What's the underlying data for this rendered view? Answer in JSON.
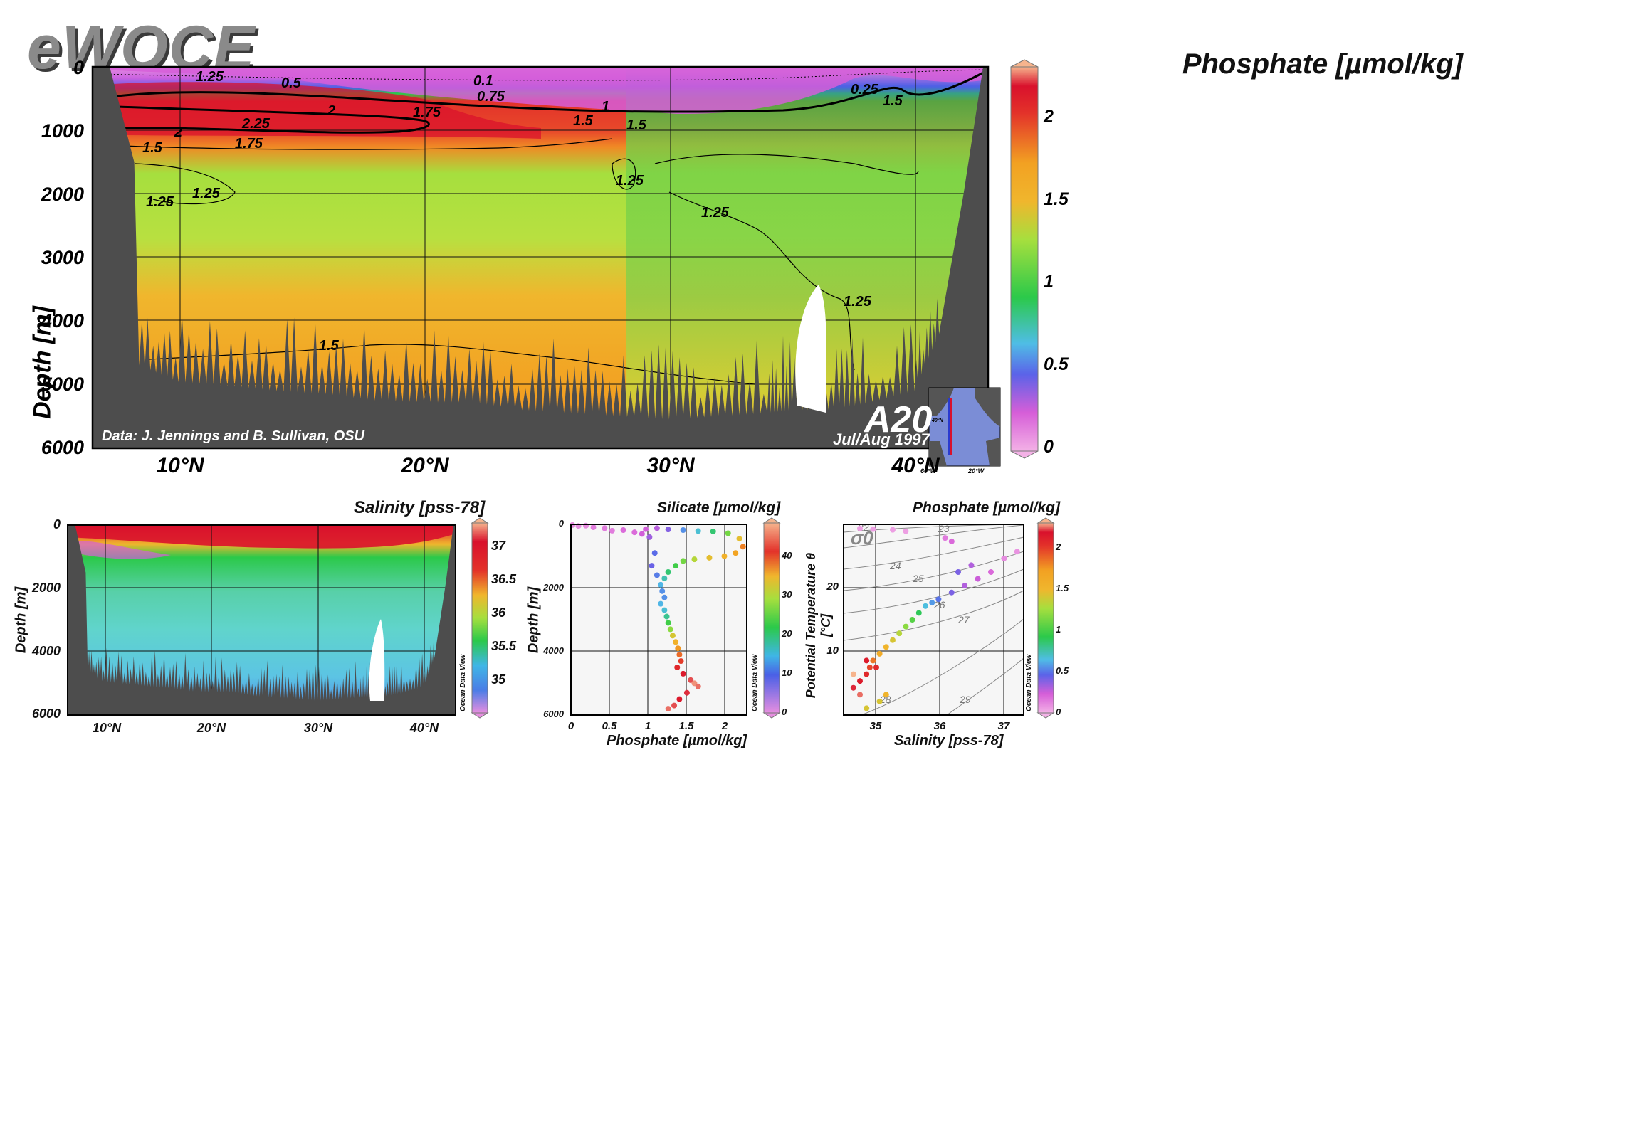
{
  "logo": "eWOCE",
  "main": {
    "title": "Phosphate [µmol/kg]",
    "ylabel": "Depth [m]",
    "credit": "Data: J. Jennings and B. Sullivan, OSU",
    "section": "A20",
    "date": "Jul/Aug 1997"
  },
  "colors": {
    "terrain": "#4d4d4d",
    "scale": [
      "#f3b1e6",
      "#d65ed8",
      "#5b63e8",
      "#4fbde6",
      "#2bc94a",
      "#a6df3e",
      "#f0b62d",
      "#f2a122",
      "#e3322a",
      "#d9112c",
      "#f6b48d"
    ]
  },
  "inset": {
    "lon_left": "60°W",
    "lon_right": "20°W",
    "lat_top": "40°N"
  },
  "chart_data": [
    {
      "id": "main",
      "type": "heatmap",
      "title": "Phosphate [µmol/kg]",
      "ylabel": "Depth [m]",
      "xlabel": "",
      "x_ticks": [
        "10°N",
        "20°N",
        "30°N",
        "40°N"
      ],
      "x_tick_values": [
        10,
        20,
        30,
        40
      ],
      "xlim": [
        6.5,
        43
      ],
      "y_ticks": [
        "0",
        "1000",
        "2000",
        "3000",
        "4000",
        "5000",
        "6000"
      ],
      "y_tick_values": [
        0,
        1000,
        2000,
        3000,
        4000,
        5000,
        6000
      ],
      "ylim": [
        6000,
        0
      ],
      "colorbar": {
        "ticks": [
          "0",
          "0.5",
          "1",
          "1.5",
          "2"
        ],
        "tick_values": [
          0,
          0.5,
          1,
          1.5,
          2
        ],
        "range": [
          0,
          2.3
        ]
      },
      "contour_labels": [
        "1.25",
        "0.5",
        "0.1",
        "0.75",
        "1",
        "2",
        "2.25",
        "1.75",
        "1.5",
        "0.25",
        "1.5",
        "1.25",
        "1.25",
        "1.25",
        "1.5",
        "1.25",
        "1.75",
        "1.5",
        "2",
        "1.5",
        "1.25"
      ],
      "bottom_depth_profile": [
        [
          7.2,
          0
        ],
        [
          8.2,
          1500
        ],
        [
          8.4,
          4700
        ],
        [
          10,
          4960
        ],
        [
          12,
          5020
        ],
        [
          14,
          5100
        ],
        [
          16,
          5150
        ],
        [
          18,
          5250
        ],
        [
          20,
          5280
        ],
        [
          22,
          5280
        ],
        [
          24,
          5400
        ],
        [
          26,
          5450
        ],
        [
          28,
          5500
        ],
        [
          30,
          5550
        ],
        [
          32,
          5500
        ],
        [
          34,
          5450
        ],
        [
          35,
          5400
        ],
        [
          36.5,
          5400
        ],
        [
          38,
          5300
        ],
        [
          40,
          5100
        ],
        [
          41,
          4200
        ],
        [
          42,
          2000
        ],
        [
          42.8,
          0
        ]
      ],
      "grid": true
    },
    {
      "id": "salinity",
      "type": "heatmap",
      "title": "Salinity [pss-78]",
      "ylabel": "Depth [m]",
      "x_ticks": [
        "10°N",
        "20°N",
        "30°N",
        "40°N"
      ],
      "x_tick_values": [
        10,
        20,
        30,
        40
      ],
      "xlim": [
        6.5,
        43
      ],
      "y_ticks": [
        "0",
        "2000",
        "4000",
        "6000"
      ],
      "y_tick_values": [
        0,
        2000,
        4000,
        6000
      ],
      "ylim": [
        6000,
        0
      ],
      "colorbar": {
        "ticks": [
          "35",
          "35.5",
          "36",
          "36.5",
          "37"
        ],
        "tick_values": [
          35,
          35.5,
          36,
          36.5,
          37
        ],
        "range": [
          34.6,
          37.4
        ]
      },
      "colorbar_note": "Ocean Data View",
      "grid": true
    },
    {
      "id": "silicate",
      "type": "scatter",
      "title": "Silicate [µmol/kg]",
      "xlabel": "Phosphate [µmol/kg]",
      "ylabel": "Depth [m]",
      "x_ticks": [
        "0",
        "0.5",
        "1",
        "1.5",
        "2"
      ],
      "x_tick_values": [
        0,
        0.5,
        1,
        1.5,
        2
      ],
      "xlim": [
        0,
        2.35
      ],
      "y_ticks": [
        "0",
        "2000",
        "4000",
        "6000"
      ],
      "y_tick_values": [
        0,
        2000,
        4000,
        6000
      ],
      "ylim": [
        6000,
        0
      ],
      "colorbar": {
        "ticks": [
          "0",
          "10",
          "20",
          "30",
          "40"
        ],
        "tick_values": [
          0,
          10,
          20,
          30,
          40
        ],
        "range": [
          0,
          48
        ]
      },
      "colorbar_note": "Ocean Data View",
      "points": [
        [
          0.02,
          20,
          2
        ],
        [
          0.1,
          50,
          2
        ],
        [
          0.2,
          40,
          2
        ],
        [
          0.3,
          90,
          3
        ],
        [
          0.45,
          120,
          3
        ],
        [
          0.55,
          200,
          3
        ],
        [
          0.7,
          180,
          4
        ],
        [
          0.85,
          250,
          4
        ],
        [
          0.95,
          300,
          5
        ],
        [
          1.0,
          150,
          5
        ],
        [
          1.05,
          400,
          7
        ],
        [
          1.15,
          120,
          6
        ],
        [
          1.3,
          160,
          8
        ],
        [
          1.5,
          180,
          12
        ],
        [
          1.7,
          210,
          15
        ],
        [
          1.9,
          220,
          18
        ],
        [
          2.1,
          280,
          22
        ],
        [
          2.25,
          450,
          28
        ],
        [
          2.3,
          700,
          35
        ],
        [
          2.2,
          900,
          33
        ],
        [
          2.05,
          1000,
          30
        ],
        [
          1.85,
          1050,
          28
        ],
        [
          1.65,
          1100,
          25
        ],
        [
          1.5,
          1150,
          22
        ],
        [
          1.4,
          1300,
          20
        ],
        [
          1.3,
          1500,
          18
        ],
        [
          1.25,
          1700,
          16
        ],
        [
          1.2,
          1900,
          14
        ],
        [
          1.22,
          2100,
          12
        ],
        [
          1.25,
          2300,
          12
        ],
        [
          1.2,
          2500,
          14
        ],
        [
          1.25,
          2700,
          15
        ],
        [
          1.28,
          2900,
          17
        ],
        [
          1.3,
          3100,
          20
        ],
        [
          1.33,
          3300,
          23
        ],
        [
          1.36,
          3500,
          27
        ],
        [
          1.4,
          3700,
          30
        ],
        [
          1.43,
          3900,
          34
        ],
        [
          1.45,
          4100,
          36
        ],
        [
          1.47,
          4300,
          38
        ],
        [
          1.42,
          4500,
          40
        ],
        [
          1.5,
          4700,
          42
        ],
        [
          1.6,
          4900,
          45
        ],
        [
          1.65,
          5000,
          47
        ],
        [
          1.7,
          5100,
          46
        ],
        [
          1.55,
          5300,
          44
        ],
        [
          1.45,
          5500,
          42
        ],
        [
          1.38,
          5700,
          45
        ],
        [
          1.3,
          5800,
          46
        ],
        [
          1.12,
          900,
          10
        ],
        [
          1.08,
          1300,
          9
        ],
        [
          1.15,
          1600,
          11
        ]
      ],
      "grid": true
    },
    {
      "id": "ts",
      "type": "scatter",
      "title": "Phosphate [µmol/kg]",
      "xlabel": "Salinity [pss-78]",
      "ylabel": "Potential Temperature θ [°C]",
      "x_ticks": [
        "35",
        "36",
        "37"
      ],
      "x_tick_values": [
        35,
        36,
        37
      ],
      "xlim": [
        34.55,
        37.3
      ],
      "y_ticks": [
        "10",
        "20"
      ],
      "y_tick_values": [
        10,
        20
      ],
      "ylim": [
        1,
        29
      ],
      "colorbar": {
        "ticks": [
          "0",
          "0.5",
          "1",
          "1.5",
          "2"
        ],
        "tick_values": [
          0,
          0.5,
          1,
          1.5,
          2
        ],
        "range": [
          0,
          2.3
        ]
      },
      "colorbar_note": "Ocean Data View",
      "isopycnal_label": "σ0",
      "isopycnals": [
        "22",
        "23",
        "24",
        "25",
        "26",
        "27",
        "28",
        "29"
      ],
      "points": [
        [
          34.7,
          5,
          2.1
        ],
        [
          34.8,
          6,
          2.0
        ],
        [
          34.9,
          7,
          1.9
        ],
        [
          34.95,
          8,
          1.8
        ],
        [
          35.0,
          9,
          1.7
        ],
        [
          35.1,
          10,
          1.5
        ],
        [
          35.2,
          11,
          1.4
        ],
        [
          35.3,
          12,
          1.3
        ],
        [
          35.4,
          13,
          1.2
        ],
        [
          35.5,
          14,
          1.1
        ],
        [
          35.6,
          15,
          1.0
        ],
        [
          35.7,
          16,
          0.9
        ],
        [
          35.8,
          17,
          0.7
        ],
        [
          35.9,
          17.5,
          0.6
        ],
        [
          36.0,
          18,
          0.5
        ],
        [
          36.2,
          19,
          0.4
        ],
        [
          36.4,
          20,
          0.3
        ],
        [
          36.6,
          21,
          0.25
        ],
        [
          36.8,
          22,
          0.2
        ],
        [
          37.0,
          24,
          0.1
        ],
        [
          37.2,
          25,
          0.08
        ],
        [
          36.1,
          27,
          0.15
        ],
        [
          36.2,
          26.5,
          0.2
        ],
        [
          35.5,
          28,
          0.05
        ],
        [
          35.3,
          28.2,
          0.05
        ],
        [
          35.0,
          28.3,
          0.05
        ],
        [
          34.8,
          28.4,
          0.05
        ],
        [
          36.3,
          22,
          0.4
        ],
        [
          36.5,
          23,
          0.3
        ],
        [
          35.2,
          4,
          1.4
        ],
        [
          35.1,
          3,
          1.3
        ],
        [
          34.9,
          2,
          1.3
        ],
        [
          34.8,
          4,
          2.2
        ],
        [
          34.7,
          7,
          2.3
        ],
        [
          34.9,
          9,
          2.0
        ],
        [
          35.05,
          8,
          1.9
        ]
      ],
      "grid": true
    }
  ]
}
